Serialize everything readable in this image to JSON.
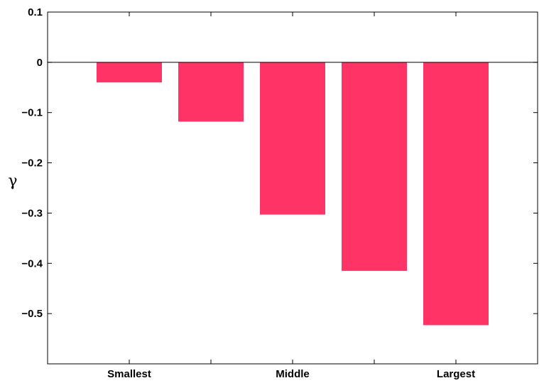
{
  "chart_data": {
    "type": "bar",
    "categories": [
      "Smallest",
      "",
      "Middle",
      "",
      "Largest"
    ],
    "values": [
      -0.04,
      -0.118,
      -0.303,
      -0.415,
      -0.523
    ],
    "ylabel": "γ",
    "ylim": [
      -0.6,
      0.1
    ],
    "yticks": [
      0.1,
      0,
      -0.1,
      -0.2,
      -0.3,
      -0.4,
      -0.5
    ],
    "ytick_labels": [
      "0.1",
      "0",
      "−0.1",
      "−0.2",
      "−0.3",
      "−0.4",
      "−0.5"
    ],
    "bar_color": "#ff3366",
    "zero_line": true,
    "grid": false,
    "legend": false
  }
}
